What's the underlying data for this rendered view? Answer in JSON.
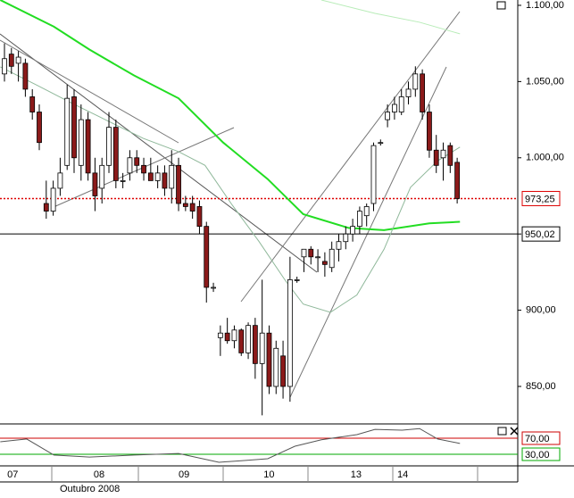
{
  "chart_data": [
    {
      "type": "candlestick",
      "x": [
        0,
        1,
        2,
        3,
        4,
        5,
        6,
        7,
        8,
        9,
        10,
        11,
        12,
        13,
        14,
        15,
        16,
        17,
        18,
        19,
        20,
        21,
        22,
        23,
        24,
        25,
        26,
        27,
        28,
        29,
        30,
        31,
        32,
        33,
        34,
        35,
        36,
        37,
        38,
        39,
        40,
        41,
        42,
        43,
        44,
        45,
        46,
        47,
        48,
        49,
        50,
        51,
        52,
        53,
        54,
        55,
        56,
        57,
        58,
        59,
        60,
        61,
        62,
        63,
        64,
        65
      ],
      "open": [
        1055,
        1068,
        1062,
        1062,
        1040,
        1030,
        970,
        965,
        980,
        995,
        1040,
        995,
        1025,
        990,
        980,
        995,
        1020,
        985,
        990,
        1000,
        995,
        990,
        985,
        990,
        980,
        995,
        970,
        970,
        968,
        955,
        915,
        882,
        885,
        880,
        887,
        872,
        890,
        865,
        885,
        850,
        870,
        850,
        920,
        935,
        940,
        935,
        932,
        928,
        940,
        945,
        950,
        955,
        962,
        970,
        1010,
        1025,
        1030,
        1030,
        1040,
        1045,
        1055,
        1030,
        1005,
        1000,
        1008,
        997
      ],
      "high": [
        1075,
        1072,
        1070,
        1065,
        1045,
        1035,
        985,
        985,
        1000,
        1048,
        1045,
        1035,
        1030,
        1000,
        1000,
        1030,
        1025,
        990,
        1005,
        1005,
        1000,
        1000,
        995,
        995,
        1005,
        1000,
        975,
        975,
        972,
        958,
        918,
        890,
        895,
        890,
        888,
        892,
        895,
        920,
        890,
        880,
        880,
        935,
        922,
        940,
        942,
        940,
        938,
        945,
        950,
        955,
        960,
        968,
        970,
        1010,
        1012,
        1035,
        1040,
        1045,
        1050,
        1060,
        1058,
        1035,
        1015,
        1010,
        1010,
        1000
      ],
      "low": [
        1050,
        1055,
        1050,
        1040,
        1025,
        1005,
        960,
        962,
        975,
        992,
        990,
        985,
        985,
        965,
        970,
        990,
        980,
        980,
        985,
        990,
        985,
        985,
        980,
        975,
        970,
        965,
        965,
        960,
        950,
        905,
        912,
        870,
        878,
        875,
        870,
        868,
        855,
        831,
        845,
        845,
        842,
        840,
        918,
        925,
        930,
        925,
        922,
        925,
        932,
        940,
        945,
        950,
        955,
        965,
        1008,
        1020,
        1025,
        1028,
        1035,
        1040,
        1025,
        1000,
        990,
        985,
        990,
        970
      ],
      "close": [
        1065,
        1060,
        1066,
        1045,
        1030,
        1010,
        965,
        980,
        990,
        1039,
        1000,
        1025,
        990,
        975,
        995,
        1020,
        985,
        985,
        1000,
        995,
        990,
        985,
        990,
        980,
        995,
        970,
        968,
        965,
        955,
        915,
        915,
        885,
        880,
        887,
        872,
        890,
        865,
        885,
        850,
        875,
        850,
        920,
        920,
        940,
        935,
        935,
        930,
        940,
        945,
        950,
        955,
        965,
        968,
        1008,
        1010,
        1030,
        1035,
        1040,
        1045,
        1055,
        1030,
        1005,
        995,
        1005,
        995,
        973.25
      ],
      "up_color": "#ffffff",
      "down_color": "#8b1a1a",
      "overlays": [
        {
          "x": [
            -0.6,
            7.1,
            12.2,
            18.6,
            25,
            31.4,
            37.8,
            42.9,
            49.4,
            54.5,
            61,
            65.4
          ],
          "values": [
            1103.5,
            1086,
            1071,
            1054,
            1039,
            1010,
            986,
            963,
            954,
            952.5,
            957,
            958
          ],
          "color": "#22dd22",
          "width": 2
        },
        {
          "x": [
            -0.6,
            4.5,
            9.6,
            14.7,
            19.9,
            25,
            28.8,
            32.7,
            36.5,
            40.4,
            42.9,
            46.8,
            50.6,
            54.5,
            58.3,
            62.2,
            65.4
          ],
          "values": [
            1059.6,
            1048,
            1036,
            1024.5,
            1012.8,
            1004,
            995,
            969,
            945.4,
            919,
            904,
            898.6,
            910,
            940,
            980.6,
            998,
            1007
          ],
          "color": "#8fb89a",
          "width": 1
        },
        {
          "x": [
            45.5,
            53.2,
            59.6,
            65.4
          ],
          "values": [
            1103.5,
            1094.7,
            1088.9,
            1081.3
          ],
          "color": "#b8ecb8",
          "width": 1
        }
      ],
      "price_lines": [
        {
          "value": 973.25,
          "label": "973,25",
          "color": "#dd0000",
          "style": "dotted"
        },
        {
          "value": 950.02,
          "label": "950,02",
          "color": "#000000",
          "style": "solid"
        }
      ],
      "xlim": [
        -0.64,
        73.7
      ],
      "ylim": [
        825.4,
        1103.5
      ],
      "yticks": [
        {
          "value": 850,
          "label": "850,00"
        },
        {
          "value": 900,
          "label": "900,00"
        },
        {
          "value": 950,
          "label": "950,00"
        },
        {
          "value": 1000,
          "label": "1.000,00"
        },
        {
          "value": 1050,
          "label": "1.050,00"
        },
        {
          "value": 1100,
          "label": "1.100,00"
        }
      ],
      "xticks": [
        {
          "value": 0.4,
          "label": "07"
        },
        {
          "value": 12.8,
          "label": "08"
        },
        {
          "value": 25,
          "label": "09"
        },
        {
          "value": 37.2,
          "label": "10"
        },
        {
          "value": 49.7,
          "label": "13"
        },
        {
          "value": 56.4,
          "label": "14"
        }
      ],
      "x_label": "Outubro 2008"
    },
    {
      "type": "line",
      "x": [
        -0.6,
        3.2,
        7.1,
        12.2,
        18.6,
        25,
        30.8,
        34,
        37.8,
        41.7,
        45.5,
        50.6,
        53.2,
        57.1,
        59.6,
        62.2,
        65.4
      ],
      "values": [
        61,
        68,
        28,
        23,
        28,
        32,
        10,
        14,
        19,
        50,
        66,
        79,
        92,
        90,
        94,
        68,
        57
      ],
      "color": "#555555",
      "xlim": [
        -0.64,
        73.7
      ],
      "ylim": [
        0,
        100
      ],
      "levels": [
        {
          "value": 70,
          "label": "70,00",
          "color": "#cc0000"
        },
        {
          "value": 30,
          "label": "30,00",
          "color": "#00aa00"
        }
      ]
    }
  ]
}
